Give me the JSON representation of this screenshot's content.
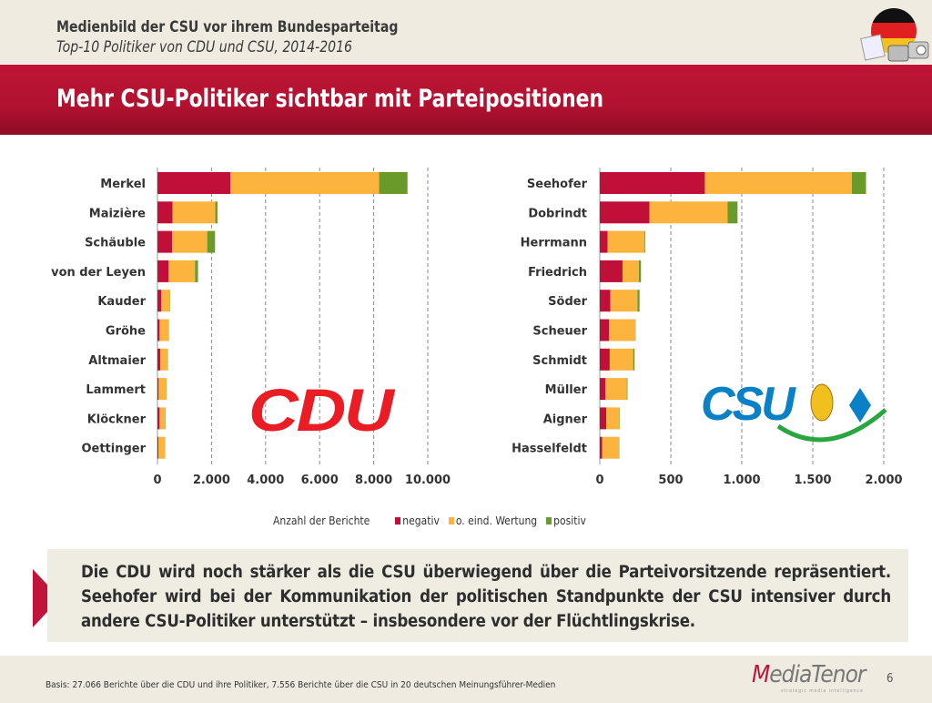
{
  "header": {
    "title": "Medienbild der CSU vor ihrem Bundesparteitag",
    "subtitle": "Top-10 Politiker von CDU und CSU, 2014-2016",
    "headline": "Mehr CSU-Politiker sichtbar mit Parteipositionen",
    "icon": "media-flag-icon"
  },
  "colors": {
    "negativ": "#c0103a",
    "neutral": "#fdb43e",
    "positiv": "#6a9a2a",
    "band": "#b8142f"
  },
  "chart_data": [
    {
      "type": "bar",
      "orientation": "horizontal",
      "stacked": true,
      "logo": "CDU",
      "categories": [
        "Merkel",
        "Maizière",
        "Schäuble",
        "von der Leyen",
        "Kauder",
        "Gröhe",
        "Altmaier",
        "Lammert",
        "Klöckner",
        "Oettinger"
      ],
      "xlim": [
        0,
        10000
      ],
      "xticks": [
        "0",
        "2.000",
        "4.000",
        "6.000",
        "8.000",
        "10.000"
      ],
      "tick_values": [
        0,
        2000,
        4000,
        6000,
        8000,
        10000
      ],
      "grid": "vertical dashed",
      "series": [
        {
          "name": "negativ",
          "values": [
            2700,
            560,
            540,
            415,
            135,
            80,
            110,
            45,
            80,
            35
          ]
        },
        {
          "name": "o. eind. Wertung",
          "values": [
            5500,
            1580,
            1300,
            975,
            325,
            335,
            270,
            285,
            210,
            235
          ]
        },
        {
          "name": "positiv",
          "values": [
            1050,
            80,
            290,
            110,
            10,
            10,
            10,
            10,
            10,
            10
          ]
        }
      ]
    },
    {
      "type": "bar",
      "orientation": "horizontal",
      "stacked": true,
      "logo": "CSU",
      "categories": [
        "Seehofer",
        "Dobrindt",
        "Herrmann",
        "Friedrich",
        "Söder",
        "Scheuer",
        "Schmidt",
        "Müller",
        "Aigner",
        "Hasselfeldt"
      ],
      "xlim": [
        0,
        2000
      ],
      "xticks": [
        "0",
        "500",
        "1.000",
        "1.500",
        "2.000"
      ],
      "tick_values": [
        0,
        500,
        1000,
        1500,
        2000
      ],
      "grid": "vertical dashed",
      "series": [
        {
          "name": "negativ",
          "values": [
            740,
            350,
            55,
            160,
            75,
            65,
            70,
            40,
            45,
            17
          ]
        },
        {
          "name": "o. eind. Wertung",
          "values": [
            1035,
            550,
            260,
            115,
            190,
            185,
            165,
            150,
            92,
            117
          ]
        },
        {
          "name": "positiv",
          "values": [
            100,
            70,
            5,
            15,
            15,
            2,
            10,
            5,
            3,
            3
          ]
        }
      ]
    }
  ],
  "legend": {
    "title": "Anzahl der Berichte",
    "items": [
      "negativ",
      "o. eind. Wertung",
      "positiv"
    ],
    "placement": "bottom"
  },
  "summary": "Die CDU wird noch stärker als die CSU überwiegend über die Parteivorsitzende repräsentiert. Seehofer wird bei der Kommunikation der politischen Standpunkte der CSU intensiver durch andere CSU-Politiker unterstützt – insbesondere vor der Flüchtlingskrise.",
  "footer": {
    "basis": "Basis: 27.066 Berichte über die CDU und ihre Politiker, 7.556 Berichte über die CSU in 20 deutschen Meinungsführer-Medien",
    "logo": "MediaTenor",
    "logo_tagline": "strategic media intelligence",
    "page": "6"
  }
}
